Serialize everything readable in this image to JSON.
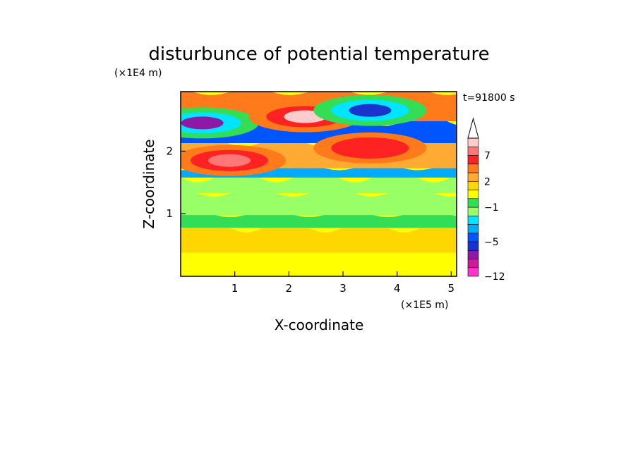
{
  "chart_data": {
    "type": "heatmap",
    "title": "disturbunce of potential temperature",
    "xlabel": "X-coordinate",
    "ylabel": "Z-coordinate",
    "x_unit": "(×1E5 m)",
    "y_unit": "(×1E4 m)",
    "time_label": "t=91800 s",
    "xlim": [
      0,
      5.1
    ],
    "ylim": [
      0,
      2.95
    ],
    "x_ticks": [
      1,
      2,
      3,
      4,
      5
    ],
    "y_ticks": [
      1,
      2
    ],
    "colorbar": {
      "levels": [
        -12,
        -10,
        -8,
        -6,
        -5,
        -4,
        -3,
        -2,
        -1,
        0,
        1,
        2,
        3,
        5,
        7,
        9,
        11
      ],
      "colors": [
        "#ff33cc",
        "#cc1a99",
        "#8c1aa6",
        "#1a33cc",
        "#0055ff",
        "#00aaff",
        "#00e5ff",
        "#99ff66",
        "#33dd55",
        "#ffff00",
        "#ffd700",
        "#ffaa33",
        "#ff7a1a",
        "#ff2222",
        "#ff7777",
        "#ffcccc"
      ],
      "tick_labels": [
        "7",
        "2",
        "−1",
        "−5",
        "−12"
      ],
      "tick_values": [
        7,
        2,
        -1,
        -5,
        -12
      ],
      "extend": "max"
    },
    "layers": [
      {
        "z_range": [
          0.0,
          0.12
        ],
        "value": 0.5
      },
      {
        "z_range": [
          0.12,
          0.4
        ],
        "value": 0.5
      },
      {
        "z_range": [
          0.4,
          0.8
        ],
        "value": 1.3
      },
      {
        "z_range": [
          0.8,
          1.0
        ],
        "value": -0.5
      },
      {
        "z_range": [
          1.0,
          1.35
        ],
        "value": -1.3
      },
      {
        "z_range": [
          1.35,
          1.6
        ],
        "value": -1.8
      },
      {
        "z_range": [
          1.6,
          1.75
        ],
        "value": -3.3
      },
      {
        "z_range": [
          1.75,
          2.15
        ],
        "value": 2.5
      },
      {
        "z_range": [
          2.15,
          2.5
        ],
        "value": -4.5
      },
      {
        "z_range": [
          2.5,
          2.95
        ],
        "value": 4
      }
    ],
    "features": [
      {
        "x": 0.4,
        "z": 2.45,
        "value": -7,
        "label": "upper-left cold core"
      },
      {
        "x": 0.9,
        "z": 1.85,
        "value": 7,
        "label": "left warm band"
      },
      {
        "x": 2.3,
        "z": 2.55,
        "value": 9,
        "label": "upper warm lobes"
      },
      {
        "x": 3.5,
        "z": 2.65,
        "value": -5.5,
        "label": "upper-right cold core"
      },
      {
        "x": 3.5,
        "z": 2.05,
        "value": 6,
        "label": "right warm core"
      }
    ]
  }
}
